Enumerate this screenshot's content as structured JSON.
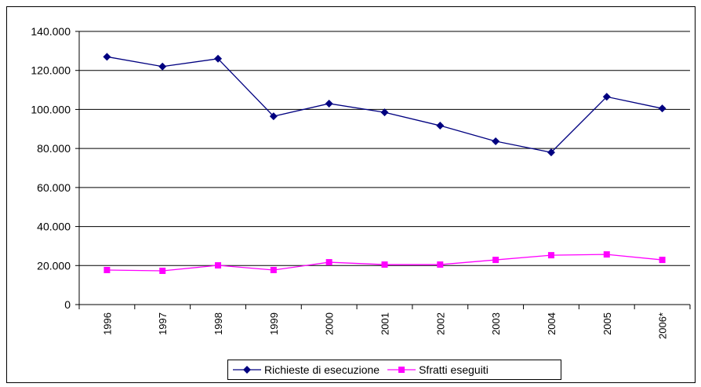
{
  "chart_data": {
    "type": "line",
    "categories": [
      "1996",
      "1997",
      "1998",
      "1999",
      "2000",
      "2001",
      "2002",
      "2003",
      "2004",
      "2005",
      "2006*"
    ],
    "series": [
      {
        "name": "Richieste di esecuzione",
        "color": "#000080",
        "marker": "diamond",
        "values": [
          127000,
          122000,
          126000,
          96500,
          103000,
          98500,
          91700,
          83700,
          78000,
          106500,
          100500
        ]
      },
      {
        "name": "Sfratti eseguiti",
        "color": "#ff00ff",
        "marker": "square",
        "values": [
          17700,
          17300,
          20100,
          17700,
          21700,
          20500,
          20500,
          22900,
          25300,
          25700,
          22900
        ]
      }
    ],
    "ylim": [
      0,
      140000
    ],
    "yticks": [
      0,
      {
        "value": 20000,
        "label": "20.000"
      },
      {
        "value": 40000,
        "label": "40.000"
      },
      {
        "value": 60000,
        "label": "60.000"
      },
      {
        "value": 80000,
        "label": "80.000"
      },
      {
        "value": 100000,
        "label": "100.000"
      },
      {
        "value": 120000,
        "label": "120.000"
      },
      {
        "value": 140000,
        "label": "140.000"
      }
    ],
    "grid": true,
    "legend": "bottom"
  }
}
